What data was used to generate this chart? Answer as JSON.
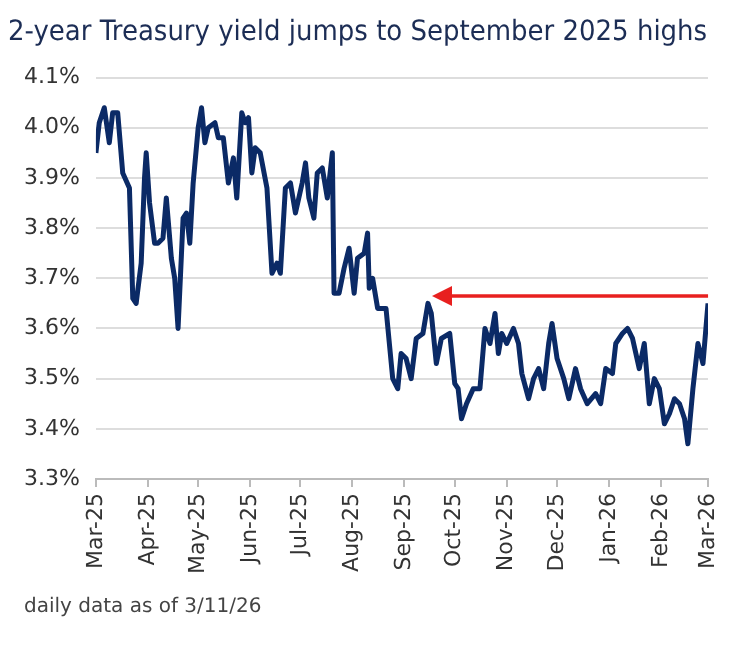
{
  "chart_data": {
    "type": "line",
    "title": "2-year Treasury yield jumps to September 2025 highs",
    "annotations": [
      "daily data as of 3/11/26"
    ],
    "x": [
      "2025-03-01",
      "2025-03-03",
      "2025-03-06",
      "2025-03-09",
      "2025-03-11",
      "2025-03-14",
      "2025-03-17",
      "2025-03-21",
      "2025-03-23",
      "2025-03-25",
      "2025-03-28",
      "2025-03-30",
      "2025-03-31",
      "2025-04-02",
      "2025-04-05",
      "2025-04-07",
      "2025-04-10",
      "2025-04-12",
      "2025-04-15",
      "2025-04-17",
      "2025-04-19",
      "2025-04-22",
      "2025-04-24",
      "2025-04-26",
      "2025-04-28",
      "2025-05-01",
      "2025-05-03",
      "2025-05-05",
      "2025-05-07",
      "2025-05-11",
      "2025-05-13",
      "2025-05-16",
      "2025-05-19",
      "2025-05-22",
      "2025-05-24",
      "2025-05-27",
      "2025-05-29",
      "2025-05-31",
      "2025-06-02",
      "2025-06-04",
      "2025-06-07",
      "2025-06-11",
      "2025-06-14",
      "2025-06-17",
      "2025-06-19",
      "2025-06-22",
      "2025-06-25",
      "2025-06-28",
      "2025-07-02",
      "2025-07-04",
      "2025-07-06",
      "2025-07-09",
      "2025-07-11",
      "2025-07-14",
      "2025-07-17",
      "2025-07-20",
      "2025-07-21",
      "2025-07-24",
      "2025-07-27",
      "2025-07-30",
      "2025-08-02",
      "2025-08-04",
      "2025-08-08",
      "2025-08-10",
      "2025-08-11",
      "2025-08-13",
      "2025-08-16",
      "2025-08-21",
      "2025-08-25",
      "2025-08-28",
      "2025-08-30",
      "2025-09-02",
      "2025-09-05",
      "2025-09-08",
      "2025-09-12",
      "2025-09-15",
      "2025-09-17",
      "2025-09-20",
      "2025-09-23",
      "2025-09-28",
      "2025-10-01",
      "2025-10-03",
      "2025-10-05",
      "2025-10-08",
      "2025-10-12",
      "2025-10-16",
      "2025-10-19",
      "2025-10-22",
      "2025-10-25",
      "2025-10-27",
      "2025-10-29",
      "2025-11-01",
      "2025-11-05",
      "2025-11-08",
      "2025-11-10",
      "2025-11-14",
      "2025-11-17",
      "2025-11-20",
      "2025-11-23",
      "2025-11-26",
      "2025-11-28",
      "2025-12-01",
      "2025-12-05",
      "2025-12-08",
      "2025-12-12",
      "2025-12-15",
      "2025-12-19",
      "2025-12-24",
      "2025-12-27",
      "2025-12-30",
      "2026-01-03",
      "2026-01-05",
      "2026-01-09",
      "2026-01-12",
      "2026-01-15",
      "2026-01-19",
      "2026-01-22",
      "2026-01-25",
      "2026-01-28",
      "2026-01-31",
      "2026-02-03",
      "2026-02-06",
      "2026-02-09",
      "2026-02-12",
      "2026-02-15",
      "2026-02-17",
      "2026-02-20",
      "2026-02-23",
      "2026-02-26",
      "2026-03-01"
    ],
    "series": [
      {
        "color": "#0b2a66",
        "values": [
          3.95,
          4.01,
          4.04,
          3.97,
          4.03,
          4.03,
          3.91,
          3.88,
          3.66,
          3.65,
          3.73,
          3.9,
          3.95,
          3.85,
          3.77,
          3.77,
          3.78,
          3.86,
          3.74,
          3.7,
          3.6,
          3.82,
          3.83,
          3.77,
          3.89,
          4.0,
          4.04,
          3.97,
          4.0,
          4.01,
          3.98,
          3.98,
          3.89,
          3.94,
          3.86,
          4.03,
          4.01,
          4.02,
          3.91,
          3.96,
          3.95,
          3.88,
          3.71,
          3.73,
          3.71,
          3.88,
          3.89,
          3.83,
          3.89,
          3.93,
          3.86,
          3.82,
          3.91,
          3.92,
          3.86,
          3.95,
          3.67,
          3.67,
          3.72,
          3.76,
          3.67,
          3.74,
          3.75,
          3.79,
          3.68,
          3.7,
          3.64,
          3.64,
          3.5,
          3.48,
          3.55,
          3.54,
          3.5,
          3.58,
          3.59,
          3.65,
          3.63,
          3.53,
          3.58,
          3.59,
          3.49,
          3.48,
          3.42,
          3.45,
          3.48,
          3.48,
          3.6,
          3.57,
          3.63,
          3.55,
          3.59,
          3.57,
          3.6,
          3.57,
          3.51,
          3.46,
          3.5,
          3.52,
          3.48,
          3.57,
          3.61,
          3.54,
          3.5,
          3.46,
          3.52,
          3.48,
          3.45,
          3.47,
          3.45,
          3.52,
          3.51,
          3.57,
          3.59,
          3.6,
          3.58,
          3.52,
          3.57,
          3.45,
          3.5,
          3.48,
          3.41,
          3.43,
          3.46,
          3.45,
          3.42,
          3.37,
          3.48,
          3.57,
          3.53,
          3.65
        ]
      }
    ],
    "xlim": [
      "2025-03-01",
      "2026-03-01"
    ],
    "xticks": [
      {
        "value": "2025-03-01",
        "label": "Mar-25"
      },
      {
        "value": "2025-04-01",
        "label": "Apr-25"
      },
      {
        "value": "2025-05-01",
        "label": "May-25"
      },
      {
        "value": "2025-06-01",
        "label": "Jun-25"
      },
      {
        "value": "2025-07-01",
        "label": "Jul-25"
      },
      {
        "value": "2025-08-01",
        "label": "Aug-25"
      },
      {
        "value": "2025-09-01",
        "label": "Sep-25"
      },
      {
        "value": "2025-10-01",
        "label": "Oct-25"
      },
      {
        "value": "2025-11-01",
        "label": "Nov-25"
      },
      {
        "value": "2025-12-01",
        "label": "Dec-25"
      },
      {
        "value": "2026-01-01",
        "label": "Jan-26"
      },
      {
        "value": "2026-02-01",
        "label": "Feb-26"
      },
      {
        "value": "2026-03-01",
        "label": "Mar-26"
      }
    ],
    "ylim": [
      3.3,
      4.1
    ],
    "yticks": [
      {
        "value": 3.3,
        "label": "3.3%"
      },
      {
        "value": 3.4,
        "label": "3.4%"
      },
      {
        "value": 3.5,
        "label": "3.5%"
      },
      {
        "value": 3.6,
        "label": "3.6%"
      },
      {
        "value": 3.7,
        "label": "3.7%"
      },
      {
        "value": 3.8,
        "label": "3.8%"
      },
      {
        "value": 3.9,
        "label": "3.9%"
      },
      {
        "value": 4.0,
        "label": "4.0%"
      },
      {
        "value": 4.1,
        "label": "4.1%"
      }
    ],
    "grid": "y",
    "legend": false,
    "marker": "none",
    "line_style": "solid"
  }
}
